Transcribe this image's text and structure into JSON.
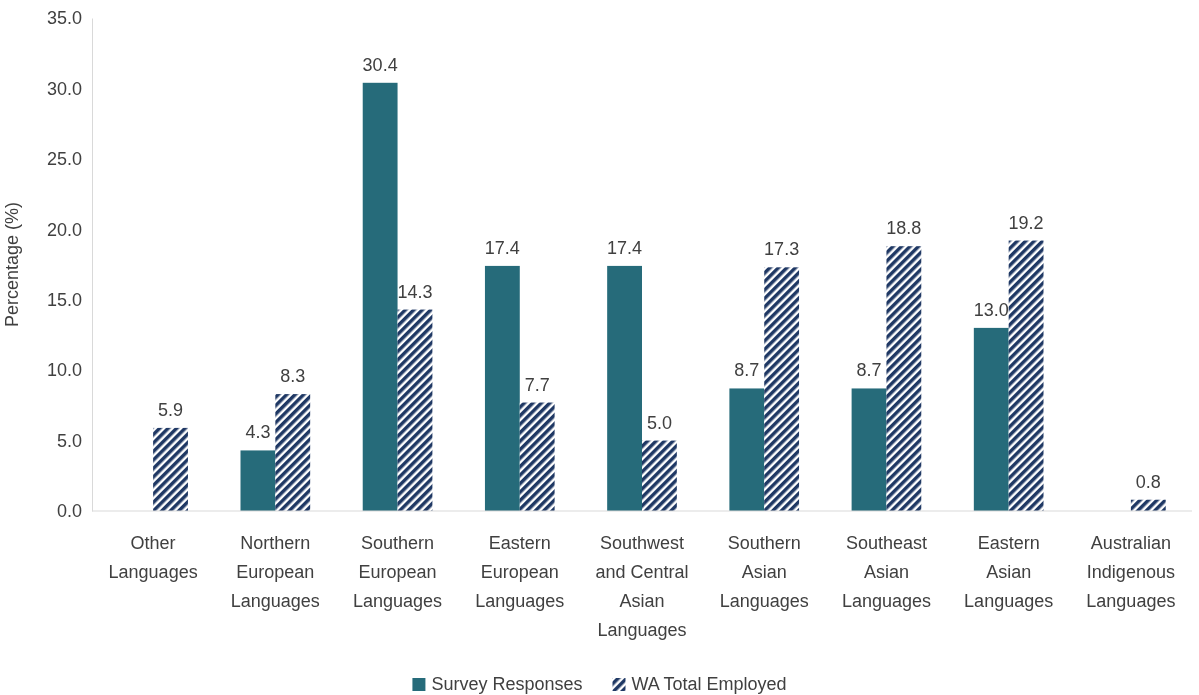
{
  "chart_data": {
    "type": "bar",
    "ylabel": "Percentage (%)",
    "categories": [
      "Other Languages",
      "Northern European Languages",
      "Southern European Languages",
      "Eastern European Languages",
      "Southwest and Central Asian Languages",
      "Southern Asian Languages",
      "Southeast Asian Languages",
      "Eastern Asian Languages",
      "Australian Indigenous Languages"
    ],
    "series": [
      {
        "name": "Survey Responses",
        "color": "#266b7a",
        "values": [
          null,
          4.3,
          30.4,
          17.4,
          17.4,
          8.7,
          8.7,
          13.0,
          null
        ],
        "value_labels": [
          null,
          "4.3",
          "30.4",
          "17.4",
          "17.4",
          "8.7",
          "8.7",
          "13.0",
          null
        ]
      },
      {
        "name": "WA Total Employed",
        "color": "#1f3864",
        "values": [
          5.9,
          8.3,
          14.3,
          7.7,
          5.0,
          17.3,
          18.8,
          19.2,
          0.8
        ],
        "value_labels": [
          "5.9",
          "8.3",
          "14.3",
          "7.7",
          "5.0",
          "17.3",
          "18.8",
          "19.2",
          "0.8"
        ]
      }
    ],
    "ylim": [
      0,
      35
    ],
    "yticks": [
      {
        "value": 0,
        "label": "0.0"
      },
      {
        "value": 5,
        "label": "5.0"
      },
      {
        "value": 10,
        "label": "10.0"
      },
      {
        "value": 15,
        "label": "15.0"
      },
      {
        "value": 20,
        "label": "20.0"
      },
      {
        "value": 25,
        "label": "25.0"
      },
      {
        "value": 30,
        "label": "30.0"
      },
      {
        "value": 35,
        "label": "35.0"
      }
    ],
    "grid": false,
    "legend": "bottom"
  }
}
